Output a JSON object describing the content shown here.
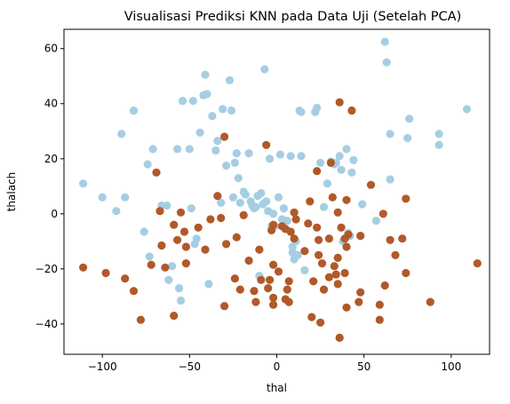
{
  "chart_data": {
    "type": "scatter",
    "title": "Visualisasi Prediksi KNN pada Data Uji (Setelah PCA)",
    "xlabel": "thal",
    "ylabel": "thalach",
    "xlim": [
      -122,
      122
    ],
    "ylim": [
      -51,
      67
    ],
    "xticks": [
      "−100",
      "−50",
      "0",
      "50",
      "100"
    ],
    "xtick_values": [
      -100,
      -50,
      0,
      50,
      100
    ],
    "yticks": [
      "−40",
      "−20",
      "0",
      "20",
      "40",
      "60"
    ],
    "ytick_values": [
      -40,
      -20,
      0,
      20,
      40,
      60
    ],
    "grid": false,
    "legend": false,
    "series": [
      {
        "color": "#a6cee3",
        "points": [
          [
            -111,
            11
          ],
          [
            -100,
            6
          ],
          [
            -92,
            1
          ],
          [
            -89,
            29
          ],
          [
            -87,
            6
          ],
          [
            -82,
            37.5
          ],
          [
            -76,
            -6.5
          ],
          [
            -74,
            18
          ],
          [
            -73,
            -15.5
          ],
          [
            -71,
            23.5
          ],
          [
            -66,
            3
          ],
          [
            -63,
            3
          ],
          [
            -62,
            -24
          ],
          [
            -60,
            -19
          ],
          [
            -57,
            23.5
          ],
          [
            -56,
            -27
          ],
          [
            -55,
            -31.5
          ],
          [
            -54,
            41
          ],
          [
            -50,
            23.5
          ],
          [
            -49,
            2
          ],
          [
            -48,
            41
          ],
          [
            -47,
            -11
          ],
          [
            -46,
            -9
          ],
          [
            -44,
            29.5
          ],
          [
            -42,
            43
          ],
          [
            -41,
            50.5
          ],
          [
            -40,
            43.5
          ],
          [
            -39,
            -25.5
          ],
          [
            -37,
            35.5
          ],
          [
            -35,
            23
          ],
          [
            -34,
            26.5
          ],
          [
            -32,
            4
          ],
          [
            -31,
            38
          ],
          [
            -29,
            17.5
          ],
          [
            -27,
            48.5
          ],
          [
            -26,
            37.5
          ],
          [
            -25,
            6
          ],
          [
            -24,
            18.5
          ],
          [
            -23,
            22
          ],
          [
            -22,
            13
          ],
          [
            -21,
            4
          ],
          [
            -19,
            8
          ],
          [
            -18,
            7
          ],
          [
            -16,
            22
          ],
          [
            -15,
            4.5
          ],
          [
            -14,
            3
          ],
          [
            -13,
            2
          ],
          [
            -12,
            2.5
          ],
          [
            -11,
            6.5
          ],
          [
            -10,
            -22.5
          ],
          [
            -9,
            7.5
          ],
          [
            -8,
            3.5
          ],
          [
            -7,
            52.5
          ],
          [
            -6,
            4.5
          ],
          [
            -5,
            1
          ],
          [
            -4,
            20
          ],
          [
            -3,
            -4.5
          ],
          [
            -2,
            0
          ],
          [
            -1,
            -4.5
          ],
          [
            1,
            6
          ],
          [
            2,
            21.5
          ],
          [
            3,
            -2
          ],
          [
            4,
            2
          ],
          [
            6,
            -2.5
          ],
          [
            8,
            21
          ],
          [
            9,
            -14
          ],
          [
            9,
            -12
          ],
          [
            10,
            -16.5
          ],
          [
            11,
            -10
          ],
          [
            12,
            -15
          ],
          [
            13,
            37.5
          ],
          [
            14,
            37
          ],
          [
            14,
            21
          ],
          [
            16,
            -20.5
          ],
          [
            22,
            37
          ],
          [
            23,
            38.5
          ],
          [
            25,
            18.5
          ],
          [
            27,
            2.5
          ],
          [
            29,
            11
          ],
          [
            31,
            19
          ],
          [
            33,
            18
          ],
          [
            34,
            18.5
          ],
          [
            36,
            21
          ],
          [
            37,
            16
          ],
          [
            38,
            -10
          ],
          [
            40,
            23.5
          ],
          [
            41,
            -7
          ],
          [
            42,
            -8
          ],
          [
            43,
            15
          ],
          [
            44,
            19.5
          ],
          [
            49,
            3.5
          ],
          [
            57,
            -2.5
          ],
          [
            62,
            62.5
          ],
          [
            63,
            55
          ],
          [
            65,
            12.5
          ],
          [
            65,
            29
          ],
          [
            75,
            27.5
          ],
          [
            76,
            34.5
          ],
          [
            93,
            29
          ],
          [
            93,
            25
          ],
          [
            109,
            38
          ]
        ]
      },
      {
        "color": "#b15928",
        "points": [
          [
            -111,
            -19.5
          ],
          [
            -98,
            -21.5
          ],
          [
            -87,
            -23.5
          ],
          [
            -82,
            -28
          ],
          [
            -78,
            -38.5
          ],
          [
            -72,
            -18.5
          ],
          [
            -69,
            15
          ],
          [
            -67,
            1
          ],
          [
            -66,
            -11.5
          ],
          [
            -64,
            -19.5
          ],
          [
            -59,
            -37
          ],
          [
            -59,
            -4
          ],
          [
            -57,
            -9.5
          ],
          [
            -55,
            0.5
          ],
          [
            -53,
            -6.5
          ],
          [
            -52,
            -18
          ],
          [
            -52,
            -12
          ],
          [
            -45,
            -5
          ],
          [
            -41,
            -13
          ],
          [
            -38,
            -2
          ],
          [
            -34,
            6.5
          ],
          [
            -32,
            -1.5
          ],
          [
            -30,
            28
          ],
          [
            -30,
            -33.5
          ],
          [
            -29,
            -11
          ],
          [
            -24,
            -23.5
          ],
          [
            -23,
            -8.5
          ],
          [
            -21,
            -27.5
          ],
          [
            -19,
            -0.5
          ],
          [
            -16,
            -17
          ],
          [
            -13,
            -28
          ],
          [
            -12,
            -32
          ],
          [
            -10,
            -13
          ],
          [
            -9,
            -24
          ],
          [
            -6,
            25
          ],
          [
            -5,
            -27
          ],
          [
            -4,
            -24
          ],
          [
            -3,
            -6
          ],
          [
            -2,
            -4
          ],
          [
            -2,
            -18.5
          ],
          [
            -2,
            -30.5
          ],
          [
            -2,
            -33
          ],
          [
            1,
            -21
          ],
          [
            3,
            -4.5
          ],
          [
            5,
            -31
          ],
          [
            5,
            -5.5
          ],
          [
            6,
            -27.5
          ],
          [
            7,
            -24.5
          ],
          [
            7,
            -32
          ],
          [
            8,
            -6.5
          ],
          [
            10,
            0.5
          ],
          [
            10,
            -9
          ],
          [
            11,
            -2
          ],
          [
            16,
            -13.5
          ],
          [
            18,
            -3.5
          ],
          [
            19,
            4.5
          ],
          [
            20,
            -37.5
          ],
          [
            21,
            -24.5
          ],
          [
            23,
            15.5
          ],
          [
            23,
            -5
          ],
          [
            24,
            -9.5
          ],
          [
            24,
            -15
          ],
          [
            25,
            -39.5
          ],
          [
            26,
            -18
          ],
          [
            27,
            -27.5
          ],
          [
            30,
            -9
          ],
          [
            30,
            -23
          ],
          [
            31,
            18.5
          ],
          [
            32,
            6
          ],
          [
            33,
            -19
          ],
          [
            34,
            -22
          ],
          [
            35,
            0.5
          ],
          [
            35,
            -16
          ],
          [
            35,
            -25.5
          ],
          [
            36,
            -45
          ],
          [
            36,
            40.5
          ],
          [
            37,
            -5
          ],
          [
            39,
            -9
          ],
          [
            39,
            -21.5
          ],
          [
            40,
            5
          ],
          [
            40,
            -12
          ],
          [
            40,
            -34
          ],
          [
            41,
            -7.5
          ],
          [
            43,
            37.5
          ],
          [
            47,
            -32
          ],
          [
            48,
            -8
          ],
          [
            48,
            -28.5
          ],
          [
            54,
            10.5
          ],
          [
            59,
            -38.5
          ],
          [
            59,
            -33
          ],
          [
            61,
            0
          ],
          [
            62,
            -26
          ],
          [
            65,
            -9.5
          ],
          [
            68,
            -15
          ],
          [
            72,
            -9
          ],
          [
            74,
            5.5
          ],
          [
            74,
            -21.5
          ],
          [
            88,
            -32
          ],
          [
            115,
            -18
          ]
        ]
      }
    ]
  }
}
